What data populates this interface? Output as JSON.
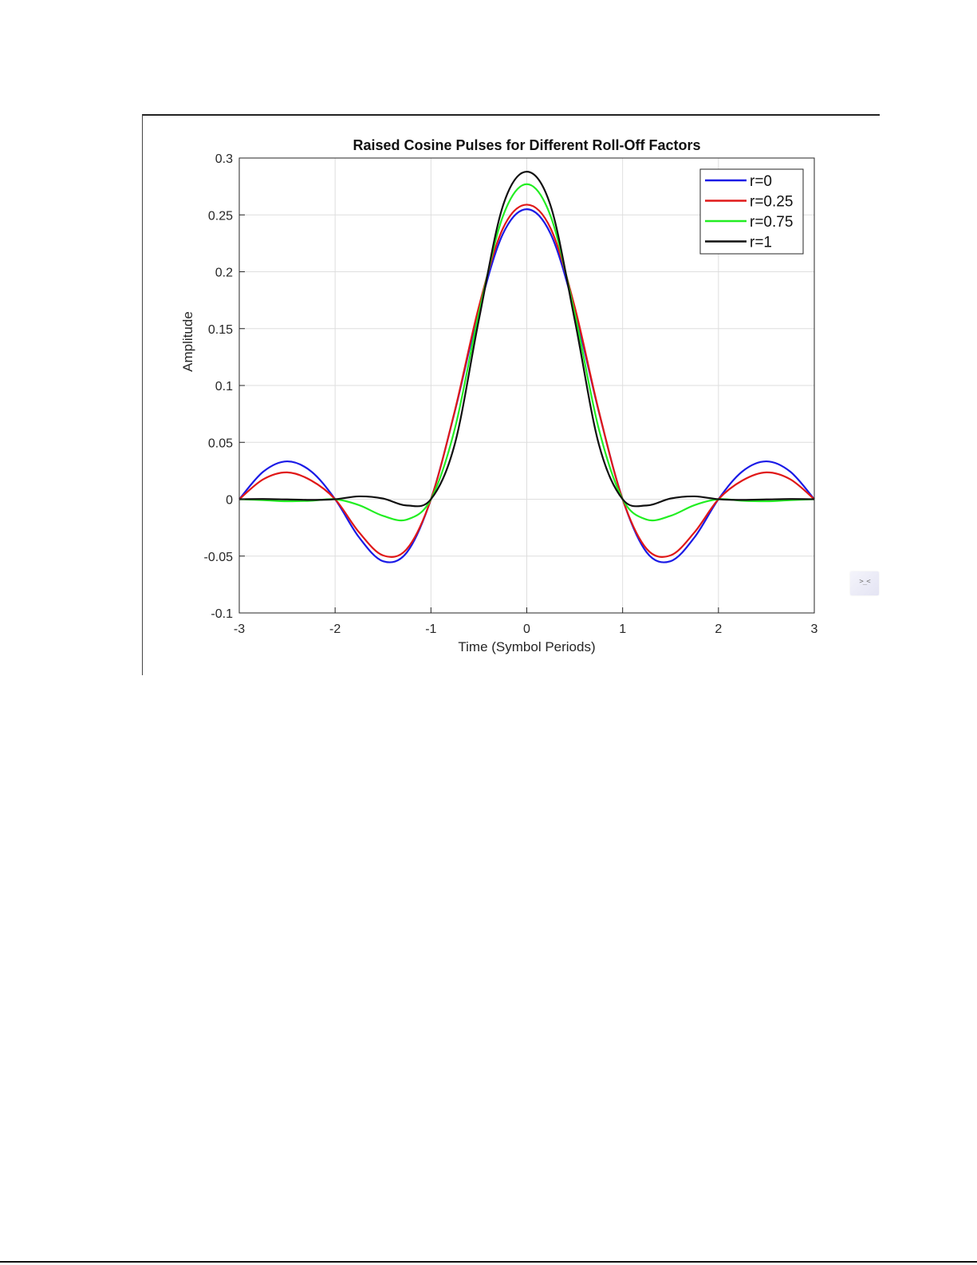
{
  "widget": {
    "icon": "terminal-face-icon",
    "glyph": ">_<"
  },
  "chart_data": {
    "type": "line",
    "title": "Raised Cosine Pulses for Different Roll-Off Factors",
    "xlabel": "Time (Symbol Periods)",
    "ylabel": "Amplitude",
    "xlim": [
      -3,
      3
    ],
    "ylim": [
      -0.1,
      0.3
    ],
    "xticks": [
      -3,
      -2,
      -1,
      0,
      1,
      2,
      3
    ],
    "xtick_labels": [
      "-3",
      "-2",
      "-1",
      "0",
      "1",
      "2",
      "3"
    ],
    "yticks": [
      -0.1,
      -0.05,
      0,
      0.05,
      0.1,
      0.15,
      0.2,
      0.25,
      0.3
    ],
    "ytick_labels": [
      "-0.1",
      "-0.05",
      "0",
      "0.05",
      "0.1",
      "0.15",
      "0.2",
      "0.25",
      "0.3"
    ],
    "grid": true,
    "legend_position": "top-right",
    "x": [
      -3.0,
      -2.75,
      -2.5,
      -2.25,
      -2.0,
      -1.75,
      -1.5,
      -1.25,
      -1.0,
      -0.75,
      -0.5,
      -0.25,
      0.0,
      0.25,
      0.5,
      0.75,
      1.0,
      1.25,
      1.5,
      1.75,
      2.0,
      2.25,
      2.5,
      2.75,
      3.0
    ],
    "series": [
      {
        "name": "r=0",
        "color": "#1a1ae6",
        "values": [
          0.0,
          0.0242,
          0.0333,
          0.0245,
          0.0,
          -0.0335,
          -0.0545,
          -0.0466,
          0.0,
          0.0775,
          0.1657,
          0.2331,
          0.255,
          0.2331,
          0.1657,
          0.0775,
          0.0,
          -0.0466,
          -0.0545,
          -0.0335,
          0.0,
          0.0245,
          0.0333,
          0.0242,
          0.0
        ]
      },
      {
        "name": "r=0.25",
        "color": "#e01818",
        "values": [
          0.0,
          0.0175,
          0.0236,
          0.0165,
          0.0,
          -0.0291,
          -0.0494,
          -0.0436,
          0.0,
          0.0781,
          0.1692,
          0.2379,
          0.259,
          0.2379,
          0.1692,
          0.0781,
          0.0,
          -0.0436,
          -0.0494,
          -0.0291,
          0.0,
          0.0165,
          0.0236,
          0.0175,
          0.0
        ]
      },
      {
        "name": "r=0.75",
        "color": "#22ee22",
        "values": [
          0.0,
          -0.0008,
          -0.0018,
          -0.0013,
          0.0,
          -0.0052,
          -0.0146,
          -0.0179,
          0.0,
          0.0623,
          0.1634,
          0.2486,
          0.277,
          0.2486,
          0.1634,
          0.0623,
          0.0,
          -0.0179,
          -0.0146,
          -0.0052,
          0.0,
          -0.0013,
          -0.0018,
          -0.0008,
          0.0
        ]
      },
      {
        "name": "r=1",
        "color": "#111111",
        "values": [
          0.0,
          0.0002,
          -0.0002,
          -0.0006,
          0.0,
          0.0025,
          0.0006,
          -0.0055,
          0.0,
          0.0489,
          0.1578,
          0.2577,
          0.288,
          0.2577,
          0.1578,
          0.0489,
          0.0,
          -0.0055,
          0.0006,
          0.0025,
          0.0,
          -0.0006,
          -0.0002,
          0.0002,
          0.0
        ]
      }
    ]
  }
}
